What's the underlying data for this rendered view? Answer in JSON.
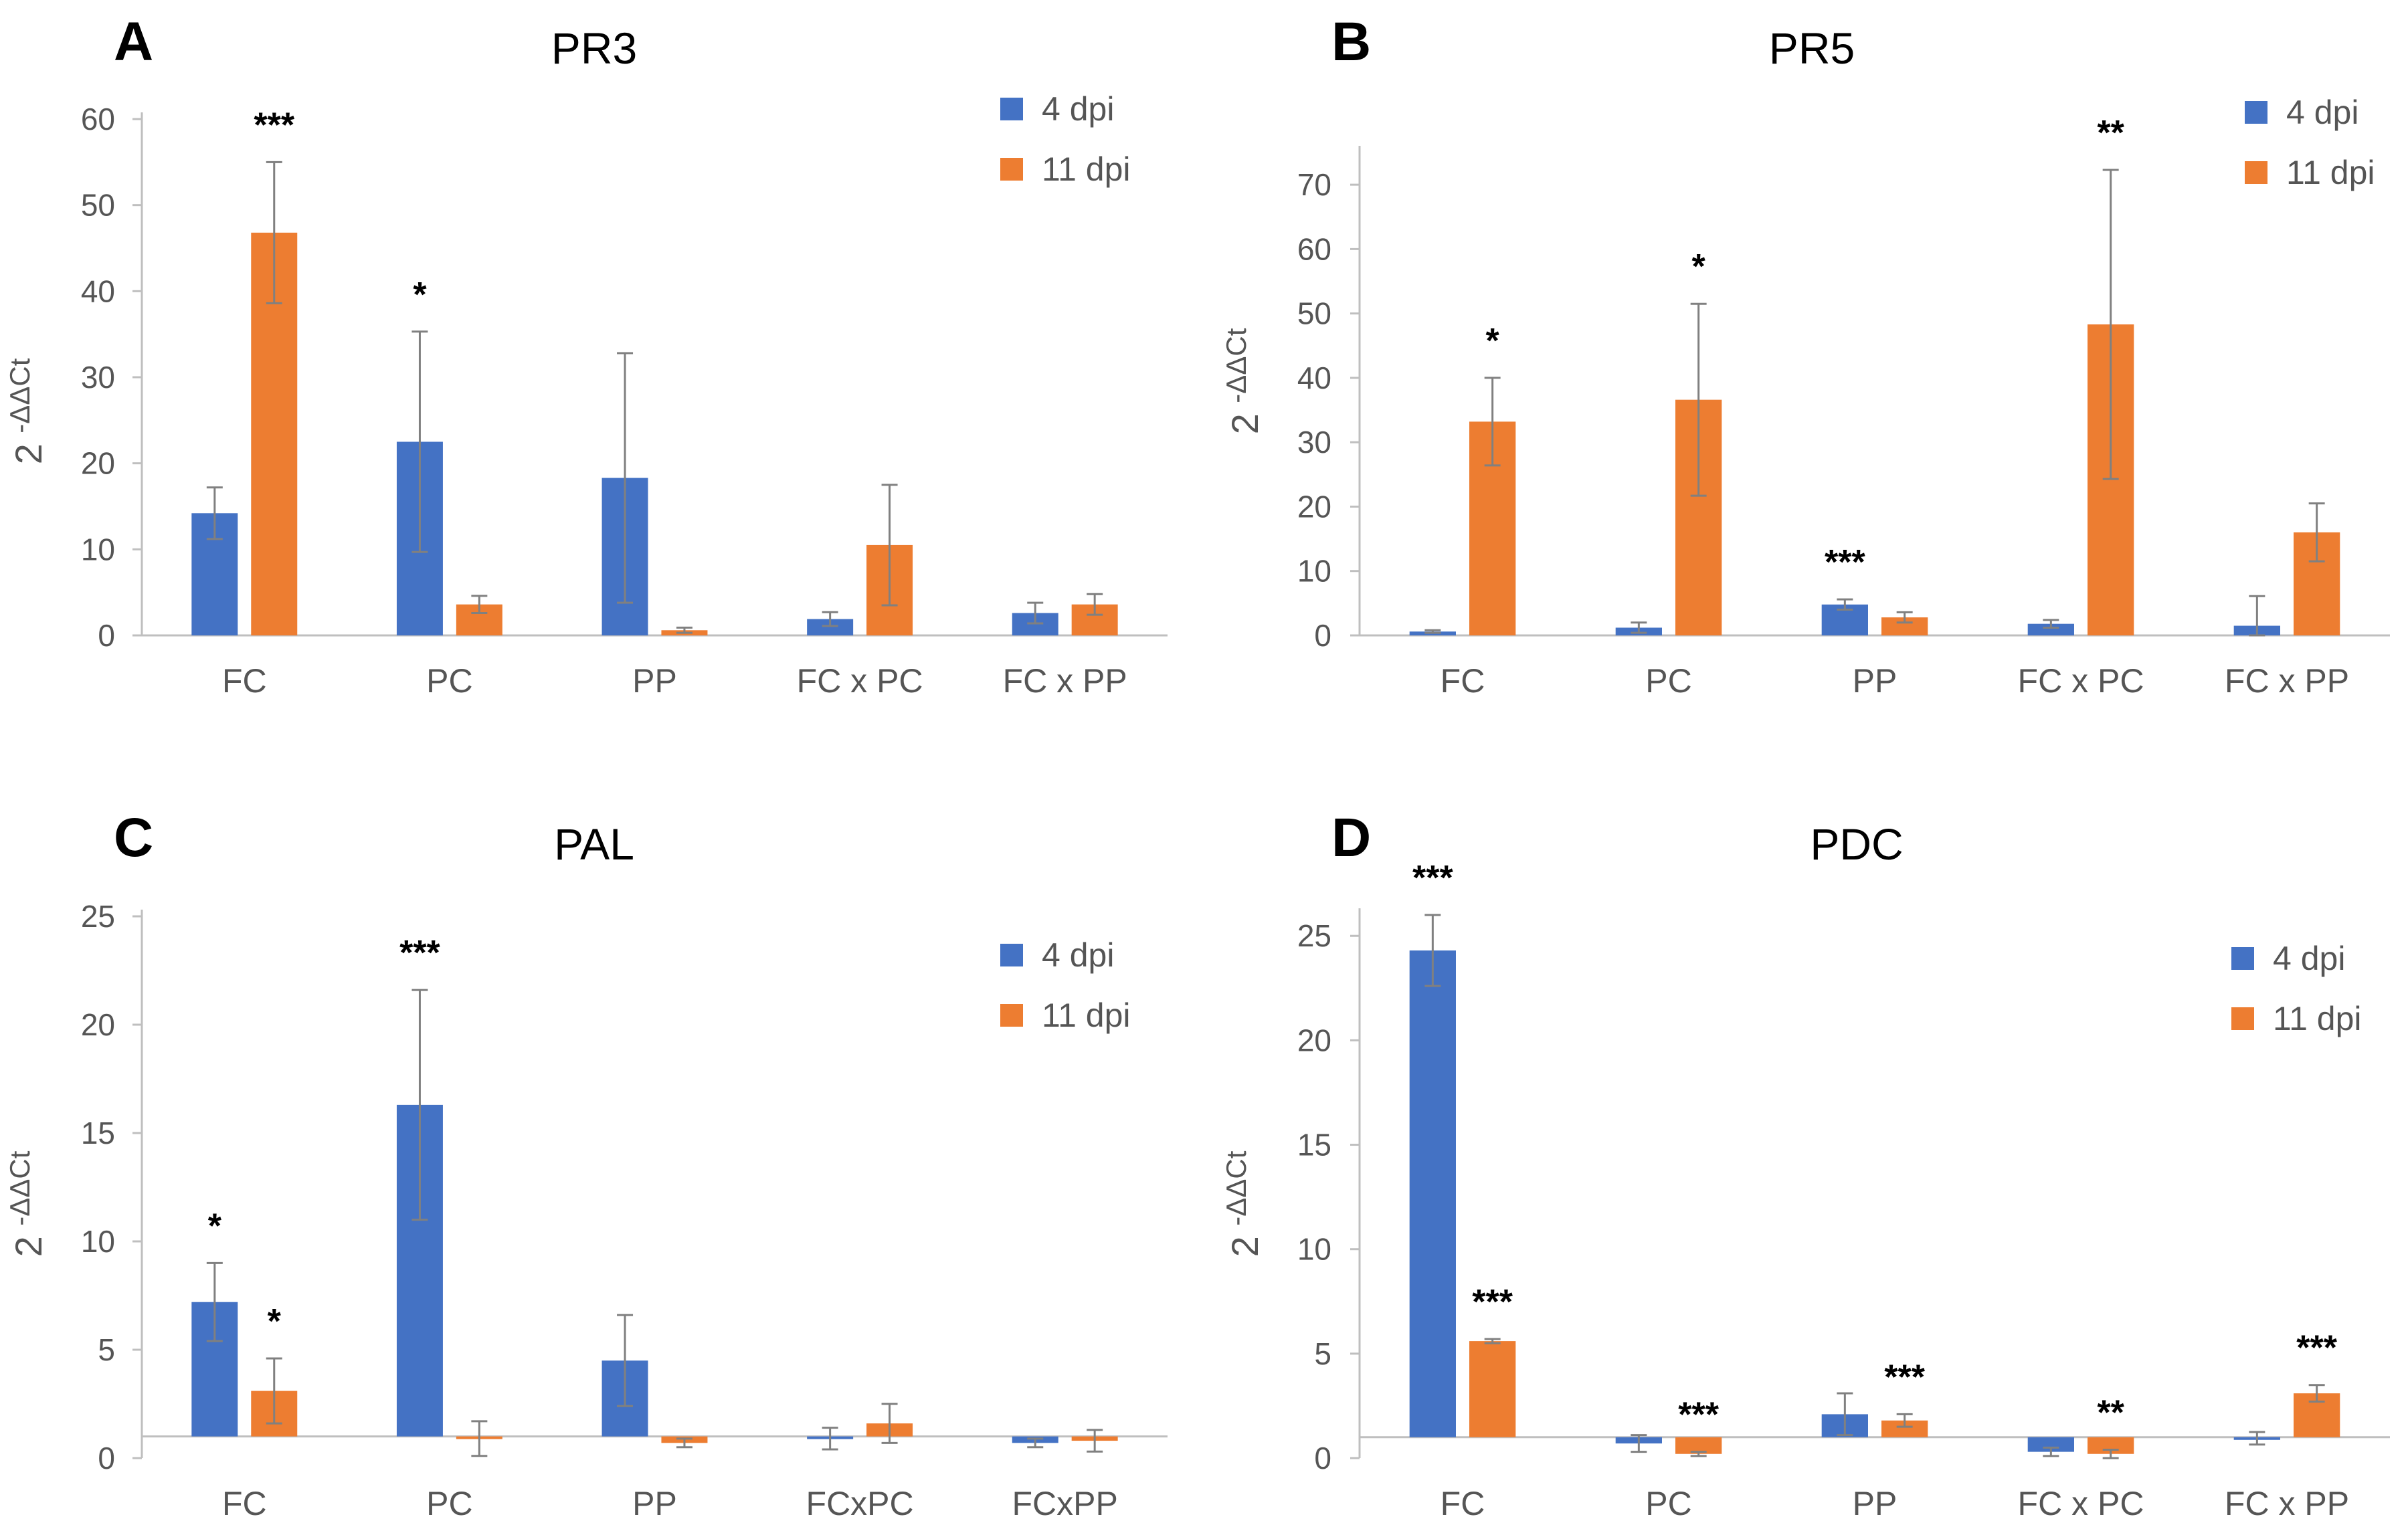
{
  "colors": {
    "dpi4": "#4472C4",
    "dpi11": "#ED7D31",
    "axis": "#BFBFBF",
    "error": "#808080"
  },
  "chart_data": [
    {
      "type": "bar",
      "panel": "A",
      "title": "PR3",
      "ylabel_base": "2",
      "ylabel_exp": "-ΔΔCt",
      "ylim": [
        0,
        60
      ],
      "yticks": [
        0,
        10,
        20,
        30,
        40,
        50,
        60
      ],
      "baseline": 0,
      "categories": [
        "FC",
        "PC",
        "PP",
        "FC x PC",
        "FC x PP"
      ],
      "legend": [
        "4 dpi",
        "11 dpi"
      ],
      "series": [
        {
          "name": "4 dpi",
          "values": [
            14.2,
            22.5,
            18.3,
            1.9,
            2.6
          ],
          "errors": [
            3.0,
            12.8,
            14.5,
            0.8,
            1.2
          ]
        },
        {
          "name": "11 dpi",
          "values": [
            46.8,
            3.6,
            0.6,
            10.5,
            3.6
          ],
          "errors": [
            8.2,
            1.0,
            0.3,
            7.0,
            1.2
          ]
        }
      ],
      "significance": [
        {
          "category": 0,
          "series": 1,
          "label": "***"
        },
        {
          "category": 1,
          "series": 0,
          "label": "*"
        }
      ]
    },
    {
      "type": "bar",
      "panel": "B",
      "title": "PR5",
      "ylabel_base": "2",
      "ylabel_exp": "-ΔΔCt",
      "ylim": [
        0,
        75
      ],
      "yticks": [
        0,
        10,
        20,
        30,
        40,
        50,
        60,
        70
      ],
      "baseline": 0,
      "categories": [
        "FC",
        "PC",
        "PP",
        "FC x PC",
        "FC x PP"
      ],
      "legend": [
        "4 dpi",
        "11 dpi"
      ],
      "series": [
        {
          "name": "4 dpi",
          "values": [
            0.6,
            1.2,
            4.8,
            1.8,
            1.5
          ],
          "errors": [
            0.2,
            0.8,
            0.8,
            0.6,
            4.6
          ]
        },
        {
          "name": "11 dpi",
          "values": [
            33.2,
            36.6,
            2.8,
            48.3,
            16.0
          ],
          "errors": [
            6.8,
            14.9,
            0.8,
            24.0,
            4.5
          ]
        }
      ],
      "significance": [
        {
          "category": 0,
          "series": 1,
          "label": "*"
        },
        {
          "category": 1,
          "series": 1,
          "label": "*"
        },
        {
          "category": 2,
          "series": 0,
          "label": "***"
        },
        {
          "category": 3,
          "series": 1,
          "label": "**"
        }
      ]
    },
    {
      "type": "bar",
      "panel": "C",
      "title": "PAL",
      "ylabel_base": "2",
      "ylabel_exp": "-ΔΔCt",
      "ylim": [
        0,
        25
      ],
      "yticks": [
        0,
        5,
        10,
        15,
        20,
        25
      ],
      "baseline": 1,
      "categories": [
        "FC",
        "PC",
        "PP",
        "FCxPC",
        "FCxPP"
      ],
      "legend": [
        "4 dpi",
        "11 dpi"
      ],
      "series": [
        {
          "name": "4 dpi",
          "values": [
            7.2,
            16.3,
            4.5,
            0.9,
            0.7
          ],
          "errors": [
            1.8,
            5.3,
            2.1,
            0.5,
            0.2
          ]
        },
        {
          "name": "11 dpi",
          "values": [
            3.1,
            0.9,
            0.7,
            1.6,
            0.8
          ],
          "errors": [
            1.5,
            0.8,
            0.2,
            0.9,
            0.5
          ]
        }
      ],
      "significance": [
        {
          "category": 0,
          "series": 0,
          "label": "*"
        },
        {
          "category": 0,
          "series": 1,
          "label": "*"
        },
        {
          "category": 1,
          "series": 0,
          "label": "***"
        }
      ]
    },
    {
      "type": "bar",
      "panel": "D",
      "title": "PDC",
      "ylabel_base": "2",
      "ylabel_exp": "-ΔΔCt",
      "ylim": [
        0,
        26
      ],
      "yticks": [
        0,
        5,
        10,
        15,
        20,
        25
      ],
      "baseline": 1,
      "categories": [
        "FC",
        "PC",
        "PP",
        "FC x PC",
        "FC x PP"
      ],
      "legend": [
        "4 dpi",
        "11 dpi"
      ],
      "series": [
        {
          "name": "4 dpi",
          "values": [
            24.3,
            0.7,
            2.1,
            0.3,
            0.95
          ],
          "errors": [
            1.7,
            0.4,
            1.0,
            0.2,
            0.3
          ]
        },
        {
          "name": "11 dpi",
          "values": [
            5.6,
            0.2,
            1.8,
            0.2,
            3.1
          ],
          "errors": [
            0.1,
            0.1,
            0.3,
            0.2,
            0.4
          ]
        }
      ],
      "significance": [
        {
          "category": 0,
          "series": 0,
          "label": "***"
        },
        {
          "category": 0,
          "series": 1,
          "label": "***"
        },
        {
          "category": 1,
          "series": 1,
          "label": "***"
        },
        {
          "category": 2,
          "series": 1,
          "label": "***"
        },
        {
          "category": 3,
          "series": 1,
          "label": "**"
        },
        {
          "category": 4,
          "series": 1,
          "label": "***"
        }
      ]
    }
  ]
}
